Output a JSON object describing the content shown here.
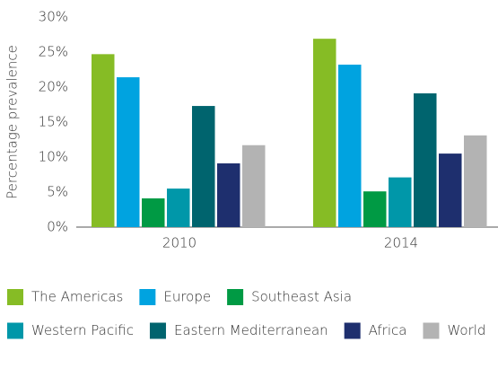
{
  "chart_data": {
    "type": "bar",
    "y_label": "Percentage prevalence",
    "categories": [
      "2010",
      "2014"
    ],
    "series": [
      {
        "name": "The Americas",
        "color": "#86bc25",
        "values": [
          24.7,
          26.9
        ]
      },
      {
        "name": "Europe",
        "color": "#00a3e0",
        "values": [
          21.4,
          23.2
        ]
      },
      {
        "name": "Southeast Asia",
        "color": "#009a44",
        "values": [
          4.1,
          5.1
        ]
      },
      {
        "name": "Western Pacific",
        "color": "#0097a9",
        "values": [
          5.5,
          7.1
        ]
      },
      {
        "name": "Eastern Mediterranean",
        "color": "#00646e",
        "values": [
          17.3,
          19.1
        ]
      },
      {
        "name": "Africa",
        "color": "#1e2f6e",
        "values": [
          9.1,
          10.5
        ]
      },
      {
        "name": "World",
        "color": "#b3b3b3",
        "values": [
          11.7,
          13.1
        ]
      }
    ],
    "ylim": [
      0,
      30
    ],
    "yticks": [
      {
        "value": 0,
        "label": "0%"
      },
      {
        "value": 5,
        "label": "5%"
      },
      {
        "value": 10,
        "label": "10%"
      },
      {
        "value": 15,
        "label": "15%"
      },
      {
        "value": 20,
        "label": "20%"
      },
      {
        "value": 25,
        "label": "25%"
      },
      {
        "value": 30,
        "label": "30%"
      }
    ],
    "grid": false,
    "legend": "bottom"
  }
}
